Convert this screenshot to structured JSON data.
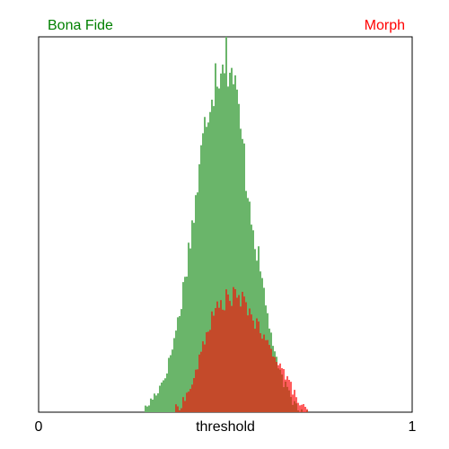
{
  "chart_data": {
    "type": "area",
    "xlabel": "threshold",
    "xlim": [
      0,
      1
    ],
    "x_ticks": [
      "0",
      "1"
    ],
    "grid": false,
    "legend_placement": "top",
    "ylim": [
      0,
      1
    ],
    "series": [
      {
        "name": "Bona Fide",
        "color": "#6ab56a",
        "label_color": "#008000",
        "label_position": "top-left",
        "x": [
          0.28,
          0.3,
          0.32,
          0.34,
          0.36,
          0.38,
          0.4,
          0.42,
          0.44,
          0.46,
          0.48,
          0.5,
          0.52,
          0.54,
          0.56,
          0.58,
          0.6,
          0.62,
          0.64,
          0.66,
          0.68,
          0.7,
          0.72
        ],
        "values": [
          0.0,
          0.03,
          0.06,
          0.1,
          0.18,
          0.28,
          0.42,
          0.56,
          0.72,
          0.86,
          0.92,
          0.97,
          0.9,
          0.76,
          0.6,
          0.46,
          0.34,
          0.22,
          0.12,
          0.07,
          0.03,
          0.01,
          0.0
        ]
      },
      {
        "name": "Morph",
        "color": "#ff4040",
        "label_color": "#ff0000",
        "label_position": "top-right",
        "x": [
          0.36,
          0.38,
          0.4,
          0.42,
          0.44,
          0.46,
          0.48,
          0.5,
          0.52,
          0.54,
          0.56,
          0.58,
          0.6,
          0.62,
          0.64,
          0.66,
          0.68,
          0.7,
          0.72
        ],
        "values": [
          0.0,
          0.02,
          0.05,
          0.1,
          0.18,
          0.24,
          0.28,
          0.3,
          0.31,
          0.3,
          0.28,
          0.24,
          0.2,
          0.17,
          0.14,
          0.1,
          0.06,
          0.02,
          0.0
        ]
      }
    ]
  }
}
